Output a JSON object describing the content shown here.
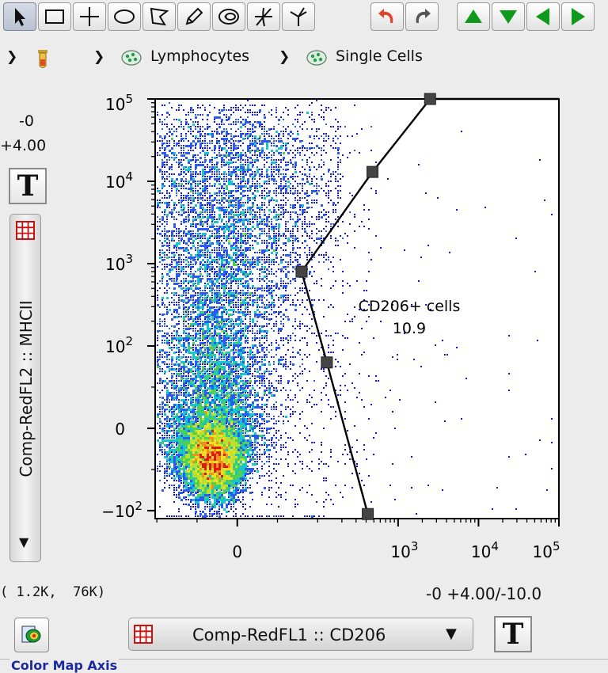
{
  "toolbar": {
    "tools": [
      {
        "icon": "arrow-select-icon",
        "active": true
      },
      {
        "icon": "rectangle-gate-icon"
      },
      {
        "icon": "quadrant-gate-icon"
      },
      {
        "icon": "ellipse-gate-icon"
      },
      {
        "icon": "polygon-gate-icon"
      },
      {
        "icon": "pencil-gate-icon"
      },
      {
        "icon": "auto-gate-icon"
      },
      {
        "icon": "spider-gate-icon"
      },
      {
        "icon": "tri-gate-icon"
      }
    ],
    "history": [
      {
        "icon": "undo-icon",
        "color": "#e0442c"
      },
      {
        "icon": "redo-icon",
        "color": "#555555"
      }
    ],
    "nav": [
      {
        "icon": "arrow-up-icon",
        "color": "#109a1d"
      },
      {
        "icon": "arrow-down-icon",
        "color": "#109a1d"
      },
      {
        "icon": "arrow-left-icon",
        "color": "#109a1d"
      },
      {
        "icon": "arrow-right-icon",
        "color": "#109a1d"
      }
    ]
  },
  "breadcrumb": {
    "items": [
      {
        "icon": "sample-tube-icon",
        "label": ""
      },
      {
        "icon": "population-icon",
        "label": "Lymphocytes"
      },
      {
        "icon": "population-icon",
        "label": "Single Cells"
      }
    ]
  },
  "y_axis": {
    "range_top": "-0",
    "range_bottom": "+4.00",
    "parameter": "Comp-RedFL2 :: MHCII",
    "t_button": "T"
  },
  "x_axis": {
    "parameter": "Comp-RedFL1 :: CD206",
    "range": "-0 +4.00/-10.0",
    "t_button": "T"
  },
  "cursor_coords": "( 1.2K,  76K)",
  "color_map_axis_label": "Color Map Axis",
  "gate": {
    "name": "CD206+ cells",
    "value": "10.9"
  },
  "chart_data": {
    "type": "scatter",
    "xlabel": "Comp-RedFL1 :: CD206",
    "ylabel": "Comp-RedFL2 :: MHCII",
    "x_ticks": [
      "0",
      "10^3",
      "10^4",
      "10^5"
    ],
    "y_ticks": [
      "-10^2",
      "0",
      "10^2",
      "10^3",
      "10^4",
      "10^5"
    ],
    "x_scale": "biexponential",
    "y_scale": "biexponential",
    "gate_vertices": [
      {
        "x": 2500,
        "y": 100000
      },
      {
        "x": 480,
        "y": 13000
      },
      {
        "x": 80,
        "y": 800
      },
      {
        "x": 130,
        "y": 80
      },
      {
        "x": 420,
        "y": -110
      }
    ],
    "gate_label": "CD206+ cells",
    "gate_percent": 10.9,
    "colors": {
      "low": "#1515d8",
      "mid": "#14c8c8",
      "mid2": "#50d050",
      "high": "#f0e020",
      "peak": "#e01a10"
    }
  }
}
